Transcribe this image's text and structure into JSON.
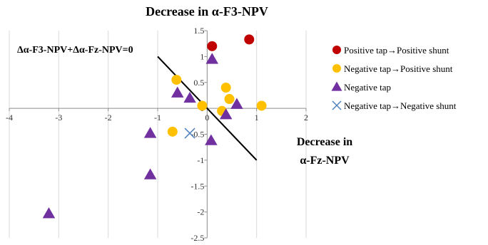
{
  "chart_data": {
    "type": "scatter",
    "title": "Decrease in α-F3-NPV",
    "xlabel_line1": "Decrease in",
    "xlabel_line2": "α-Fz-NPV",
    "xlim": [
      -4,
      2
    ],
    "ylim": [
      -2.5,
      1.5
    ],
    "x_ticks": [
      -4,
      -3,
      -2,
      -1,
      0,
      1,
      2
    ],
    "y_ticks": [
      1.5,
      1,
      0.5,
      0,
      -0.5,
      -1,
      -1.5,
      -2,
      -2.5
    ],
    "grid": "vertical gridlines",
    "legend_position": "right",
    "line_label": "Δα-F3-NPV+Δα-Fz-NPV=0",
    "reference_line": {
      "x": [
        -1,
        1
      ],
      "y": [
        1,
        -1
      ],
      "color": "#000000"
    },
    "series": [
      {
        "name": "Positive tap→Positive shunt",
        "marker": "circle",
        "color": "#c00000",
        "points": [
          [
            0.1,
            1.2
          ],
          [
            0.85,
            1.33
          ]
        ]
      },
      {
        "name": "Negative tap→Positive shunt",
        "marker": "circle",
        "color": "#ffc000",
        "points": [
          [
            -0.62,
            0.55
          ],
          [
            -0.1,
            0.05
          ],
          [
            0.3,
            -0.05
          ],
          [
            0.38,
            0.4
          ],
          [
            0.45,
            0.18
          ],
          [
            1.1,
            0.05
          ],
          [
            -0.7,
            -0.45
          ]
        ]
      },
      {
        "name": "Negative tap",
        "marker": "triangle",
        "color": "#7030a0",
        "points": [
          [
            0.1,
            0.95
          ],
          [
            -0.6,
            0.3
          ],
          [
            -0.35,
            0.2
          ],
          [
            0.6,
            0.08
          ],
          [
            0.38,
            -0.12
          ],
          [
            0.08,
            -0.62
          ],
          [
            -1.15,
            -0.48
          ],
          [
            -1.15,
            -1.28
          ],
          [
            -3.2,
            -2.03
          ]
        ]
      },
      {
        "name": "Negative tap→Negative shunt",
        "marker": "x",
        "color": "#4f81bd",
        "points": [
          [
            -0.35,
            -0.48
          ]
        ]
      }
    ]
  }
}
